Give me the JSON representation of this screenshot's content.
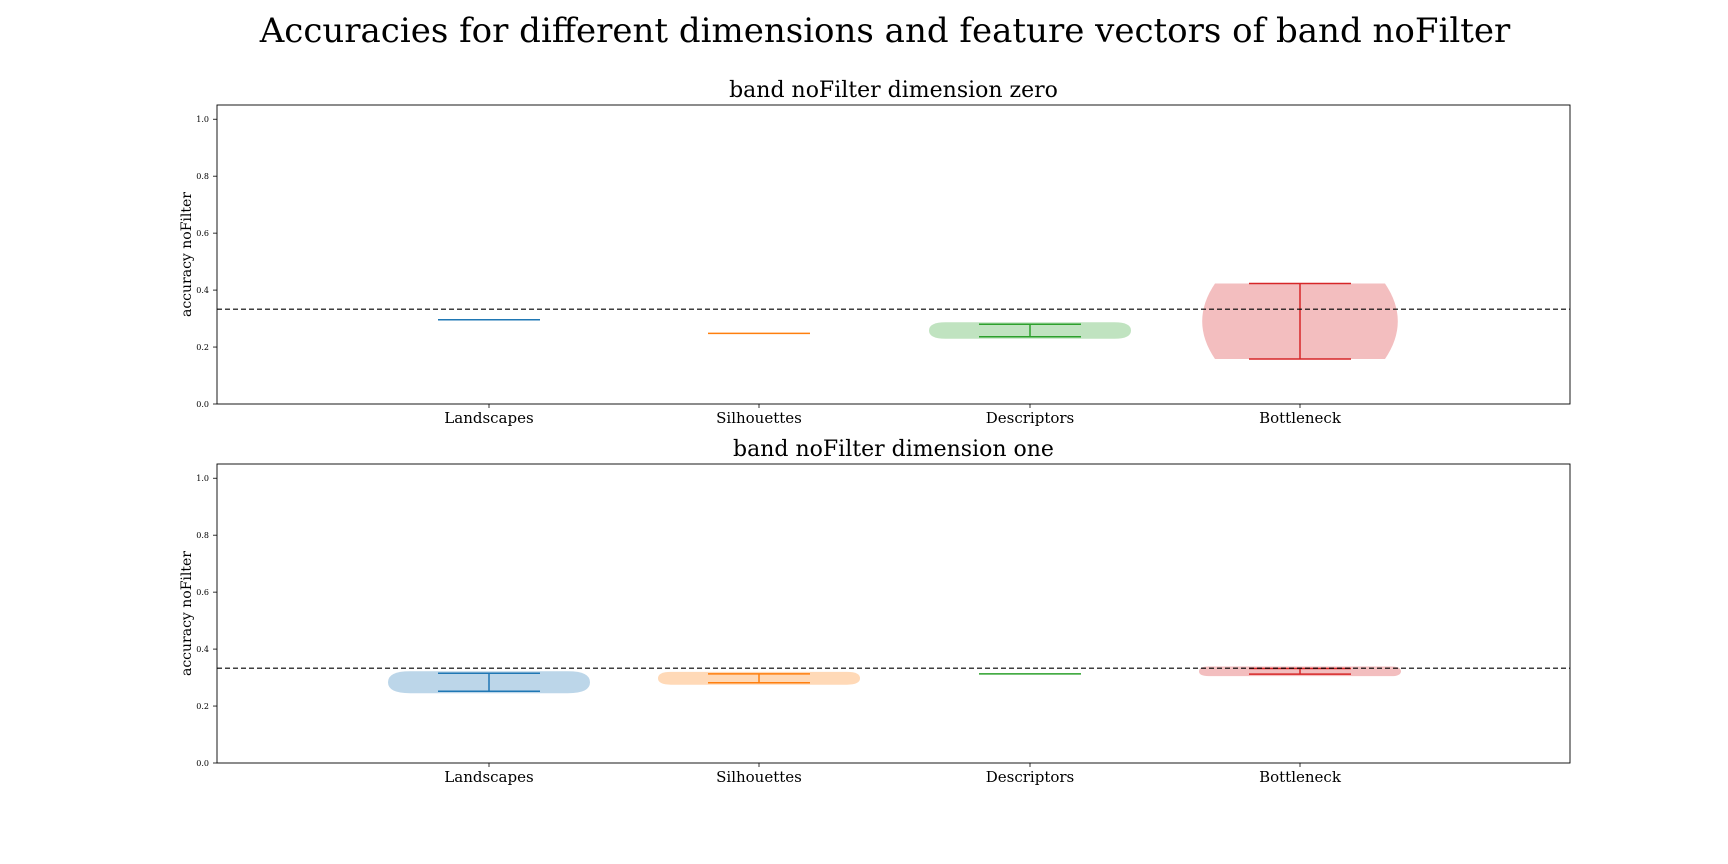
{
  "figure": {
    "title": "Accuracies for different dimensions and feature vectors of band noFilter"
  },
  "chart_data": [
    {
      "type": "violin",
      "title": "band noFilter dimension zero",
      "ylabel": "accuracy noFilter",
      "xlabel": "",
      "ylim": [
        0.0,
        1.05
      ],
      "yticks": [
        0.0,
        0.2,
        0.4,
        0.6,
        0.8,
        1.0
      ],
      "ytick_labels": [
        "0.0",
        "0.2",
        "0.4",
        "0.6",
        "0.8",
        "1.0"
      ],
      "categories": [
        "Landscapes",
        "Silhouettes",
        "Descriptors",
        "Bottleneck"
      ],
      "reference_line": 0.333,
      "grid": false,
      "series": [
        {
          "category": "Landscapes",
          "color": "#1f77b4",
          "min": 0.296,
          "max": 0.296,
          "median": 0.296,
          "max_density_value": 0.296,
          "shape": "point"
        },
        {
          "category": "Silhouettes",
          "color": "#ff7f0e",
          "min": 0.248,
          "max": 0.248,
          "median": 0.248,
          "max_density_value": 0.248,
          "shape": "point"
        },
        {
          "category": "Descriptors",
          "color": "#2ca02c",
          "min": 0.236,
          "max": 0.28,
          "median": 0.258,
          "max_density_value": 0.258,
          "shape": "oval"
        },
        {
          "category": "Bottleneck",
          "color": "#d62728",
          "min": 0.158,
          "max": 0.423,
          "median": 0.29,
          "max_density_value": 0.29,
          "shape": "round"
        }
      ]
    },
    {
      "type": "violin",
      "title": "band noFilter dimension one",
      "ylabel": "accuracy noFilter",
      "xlabel": "",
      "ylim": [
        0.0,
        1.05
      ],
      "yticks": [
        0.0,
        0.2,
        0.4,
        0.6,
        0.8,
        1.0
      ],
      "ytick_labels": [
        "0.0",
        "0.2",
        "0.4",
        "0.6",
        "0.8",
        "1.0"
      ],
      "categories": [
        "Landscapes",
        "Silhouettes",
        "Descriptors",
        "Bottleneck"
      ],
      "reference_line": 0.333,
      "grid": false,
      "series": [
        {
          "category": "Landscapes",
          "color": "#1f77b4",
          "min": 0.252,
          "max": 0.315,
          "median": 0.283,
          "max_density_value": 0.283,
          "shape": "oval"
        },
        {
          "category": "Silhouettes",
          "color": "#ff7f0e",
          "min": 0.282,
          "max": 0.313,
          "median": 0.297,
          "max_density_value": 0.297,
          "shape": "oval"
        },
        {
          "category": "Descriptors",
          "color": "#2ca02c",
          "min": 0.313,
          "max": 0.313,
          "median": 0.313,
          "max_density_value": 0.313,
          "shape": "point"
        },
        {
          "category": "Bottleneck",
          "color": "#d62728",
          "min": 0.312,
          "max": 0.332,
          "median": 0.322,
          "max_density_value": 0.322,
          "shape": "oval"
        }
      ]
    }
  ]
}
